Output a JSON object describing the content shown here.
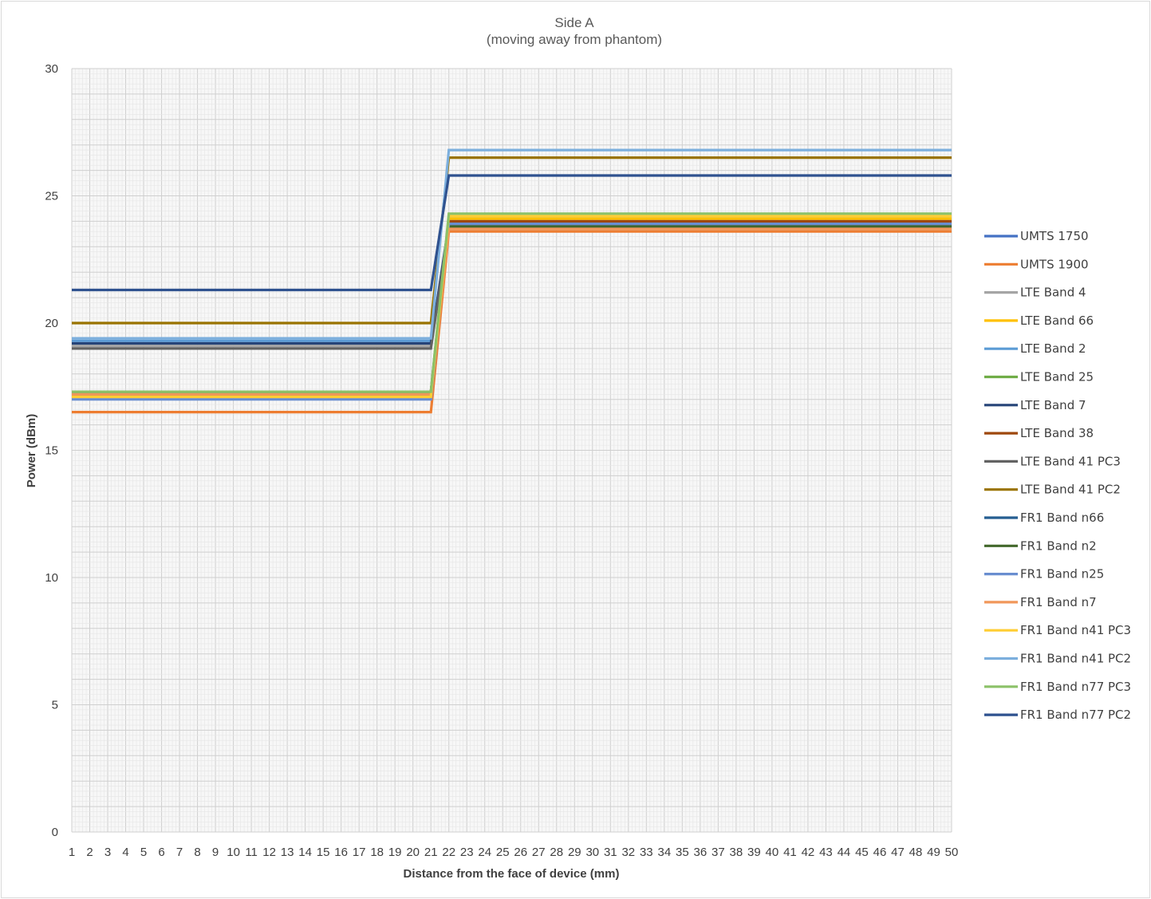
{
  "chart_data": {
    "type": "line",
    "title": "Side A",
    "subtitle": "(moving away from phantom)",
    "xlabel": "Distance from the face of device (mm)",
    "ylabel": "Power (dBm)",
    "x": [
      1,
      2,
      3,
      4,
      5,
      6,
      7,
      8,
      9,
      10,
      11,
      12,
      13,
      14,
      15,
      16,
      17,
      18,
      19,
      20,
      21,
      22,
      23,
      24,
      25,
      26,
      27,
      28,
      29,
      30,
      31,
      32,
      33,
      34,
      35,
      36,
      37,
      38,
      39,
      40,
      41,
      42,
      43,
      44,
      45,
      46,
      47,
      48,
      49,
      50
    ],
    "ylim": [
      0,
      30
    ],
    "yticks": [
      0,
      5,
      10,
      15,
      20,
      25,
      30
    ],
    "grid": true,
    "legend_position": "right",
    "step_between": [
      21,
      22
    ],
    "series": [
      {
        "name": "UMTS 1750",
        "color": "#4472c4",
        "before": 17.2,
        "after": 23.9
      },
      {
        "name": "UMTS 1900",
        "color": "#ed7d31",
        "before": 16.5,
        "after": 23.6
      },
      {
        "name": "LTE Band 4",
        "color": "#a5a5a5",
        "before": 19.1,
        "after": 23.7
      },
      {
        "name": "LTE Band 66",
        "color": "#ffc000",
        "before": 17.1,
        "after": 24.1
      },
      {
        "name": "LTE Band 2",
        "color": "#5b9bd5",
        "before": 19.3,
        "after": 23.8
      },
      {
        "name": "LTE Band 25",
        "color": "#70ad47",
        "before": 17.3,
        "after": 24.2
      },
      {
        "name": "LTE Band 7",
        "color": "#264478",
        "before": 19.2,
        "after": 23.9
      },
      {
        "name": "LTE Band 38",
        "color": "#9e480e",
        "before": 17.2,
        "after": 24.0
      },
      {
        "name": "LTE Band 41 PC3",
        "color": "#636363",
        "before": 19.0,
        "after": 23.8
      },
      {
        "name": "LTE Band 41 PC2",
        "color": "#997300",
        "before": 20.0,
        "after": 26.5
      },
      {
        "name": "FR1 Band n66",
        "color": "#255e91",
        "before": 17.1,
        "after": 23.9
      },
      {
        "name": "FR1 Band n2",
        "color": "#43682b",
        "before": 17.3,
        "after": 23.8
      },
      {
        "name": "FR1 Band n25",
        "color": "#698ed0",
        "before": 17.0,
        "after": 23.9
      },
      {
        "name": "FR1 Band n7",
        "color": "#f1975a",
        "before": 17.2,
        "after": 23.7
      },
      {
        "name": "FR1 Band n41 PC3",
        "color": "#ffcd33",
        "before": 17.1,
        "after": 24.2
      },
      {
        "name": "FR1 Band n41 PC2",
        "color": "#7cafdd",
        "before": 19.4,
        "after": 26.8
      },
      {
        "name": "FR1 Band n77 PC3",
        "color": "#8cc168",
        "before": 17.3,
        "after": 24.3
      },
      {
        "name": "FR1 Band n77 PC2",
        "color": "#2f528f",
        "before": 21.3,
        "after": 25.8
      }
    ]
  }
}
